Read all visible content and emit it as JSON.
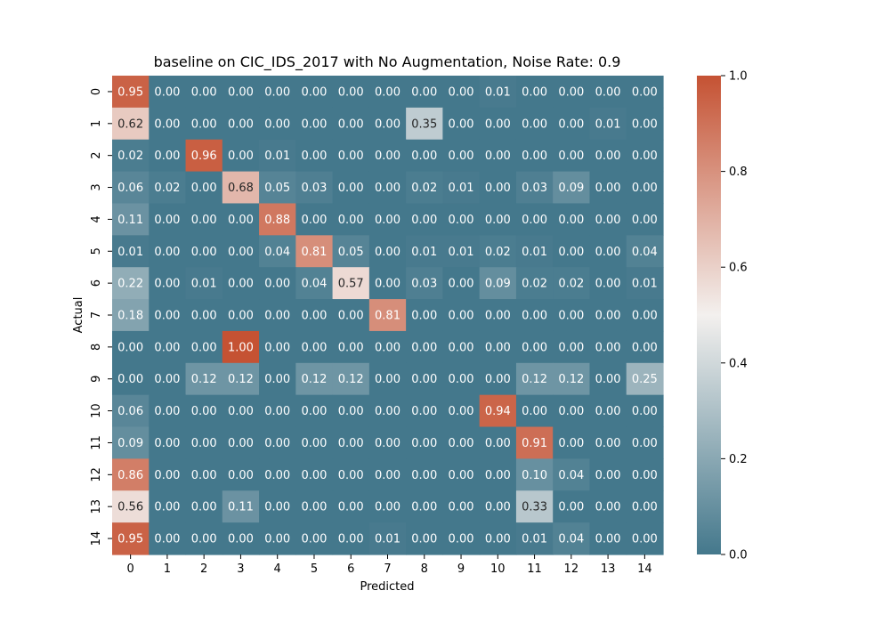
{
  "chart_data": {
    "type": "heatmap",
    "title": "baseline on CIC_IDS_2017 with No Augmentation, Noise Rate: 0.9",
    "xlabel": "Predicted",
    "ylabel": "Actual",
    "x_categories": [
      "0",
      "1",
      "2",
      "3",
      "4",
      "5",
      "6",
      "7",
      "8",
      "9",
      "10",
      "11",
      "12",
      "13",
      "14"
    ],
    "y_categories": [
      "0",
      "1",
      "2",
      "3",
      "4",
      "5",
      "6",
      "7",
      "8",
      "9",
      "10",
      "11",
      "12",
      "13",
      "14"
    ],
    "values": [
      [
        0.95,
        0.0,
        0.0,
        0.0,
        0.0,
        0.0,
        0.0,
        0.0,
        0.0,
        0.0,
        0.01,
        0.0,
        0.0,
        0.0,
        0.0
      ],
      [
        0.62,
        0.0,
        0.0,
        0.0,
        0.0,
        0.0,
        0.0,
        0.0,
        0.35,
        0.0,
        0.0,
        0.0,
        0.0,
        0.01,
        0.0
      ],
      [
        0.02,
        0.0,
        0.96,
        0.0,
        0.01,
        0.0,
        0.0,
        0.0,
        0.0,
        0.0,
        0.0,
        0.0,
        0.0,
        0.0,
        0.0
      ],
      [
        0.06,
        0.02,
        0.0,
        0.68,
        0.05,
        0.03,
        0.0,
        0.0,
        0.02,
        0.01,
        0.0,
        0.03,
        0.09,
        0.0,
        0.0
      ],
      [
        0.11,
        0.0,
        0.0,
        0.0,
        0.88,
        0.0,
        0.0,
        0.0,
        0.0,
        0.0,
        0.0,
        0.0,
        0.0,
        0.0,
        0.0
      ],
      [
        0.01,
        0.0,
        0.0,
        0.0,
        0.04,
        0.81,
        0.05,
        0.0,
        0.01,
        0.01,
        0.02,
        0.01,
        0.0,
        0.0,
        0.04
      ],
      [
        0.22,
        0.0,
        0.01,
        0.0,
        0.0,
        0.04,
        0.57,
        0.0,
        0.03,
        0.0,
        0.09,
        0.02,
        0.02,
        0.0,
        0.01
      ],
      [
        0.18,
        0.0,
        0.0,
        0.0,
        0.0,
        0.0,
        0.0,
        0.81,
        0.0,
        0.0,
        0.0,
        0.0,
        0.0,
        0.0,
        0.0
      ],
      [
        0.0,
        0.0,
        0.0,
        1.0,
        0.0,
        0.0,
        0.0,
        0.0,
        0.0,
        0.0,
        0.0,
        0.0,
        0.0,
        0.0,
        0.0
      ],
      [
        0.0,
        0.0,
        0.12,
        0.12,
        0.0,
        0.12,
        0.12,
        0.0,
        0.0,
        0.0,
        0.0,
        0.12,
        0.12,
        0.0,
        0.25
      ],
      [
        0.06,
        0.0,
        0.0,
        0.0,
        0.0,
        0.0,
        0.0,
        0.0,
        0.0,
        0.0,
        0.94,
        0.0,
        0.0,
        0.0,
        0.0
      ],
      [
        0.09,
        0.0,
        0.0,
        0.0,
        0.0,
        0.0,
        0.0,
        0.0,
        0.0,
        0.0,
        0.0,
        0.91,
        0.0,
        0.0,
        0.0
      ],
      [
        0.86,
        0.0,
        0.0,
        0.0,
        0.0,
        0.0,
        0.0,
        0.0,
        0.0,
        0.0,
        0.0,
        0.1,
        0.04,
        0.0,
        0.0
      ],
      [
        0.56,
        0.0,
        0.0,
        0.11,
        0.0,
        0.0,
        0.0,
        0.0,
        0.0,
        0.0,
        0.0,
        0.33,
        0.0,
        0.0,
        0.0
      ],
      [
        0.95,
        0.0,
        0.0,
        0.0,
        0.0,
        0.0,
        0.0,
        0.01,
        0.0,
        0.0,
        0.0,
        0.01,
        0.04,
        0.0,
        0.0
      ]
    ],
    "colorbar": {
      "range": [
        0.0,
        1.0
      ],
      "ticks": [
        "0.0",
        "0.2",
        "0.4",
        "0.6",
        "0.8",
        "1.0"
      ],
      "low_color": "#44788c",
      "mid_color": "#f3f0ee",
      "high_color": "#c55233"
    },
    "annotation_format": "2 decimals",
    "grid": false,
    "legend": "colorbar-right"
  }
}
